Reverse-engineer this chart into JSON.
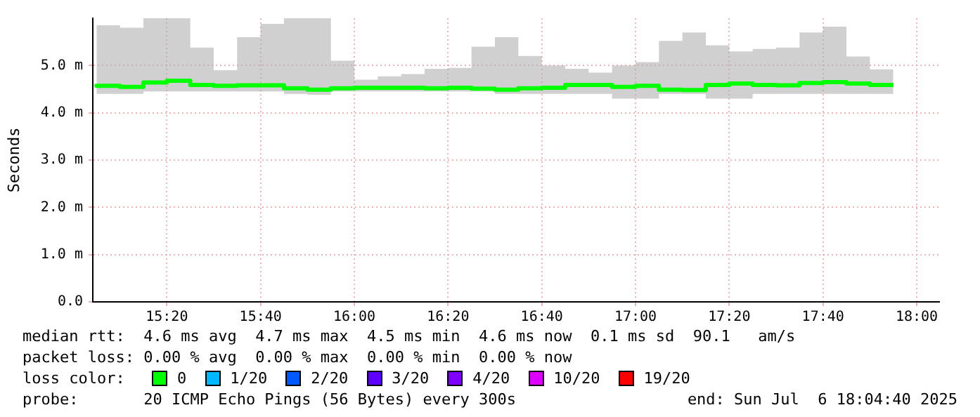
{
  "chart_data": {
    "type": "step",
    "ylabel": "Seconds",
    "legend_title": "loss color:",
    "legend": "bottom",
    "grid": true,
    "x": [
      15.0833,
      15.1667,
      15.25,
      15.3333,
      15.4167,
      15.5,
      15.5833,
      15.6667,
      15.75,
      15.8333,
      15.9167,
      16,
      16.0833,
      16.1667,
      16.25,
      16.3333,
      16.4167,
      16.5,
      16.5833,
      16.6667,
      16.75,
      16.8333,
      16.9167,
      17,
      17.0833,
      17.1667,
      17.25,
      17.3333,
      17.4167,
      17.5,
      17.5833,
      17.6667,
      17.75,
      17.8333,
      17.9167
    ],
    "xlim": [
      15.07,
      18.08
    ],
    "xticks": [
      {
        "value": 15.3333,
        "label": "15:20"
      },
      {
        "value": 15.6667,
        "label": "15:40"
      },
      {
        "value": 16,
        "label": "16:00"
      },
      {
        "value": 16.3333,
        "label": "16:20"
      },
      {
        "value": 16.6667,
        "label": "16:40"
      },
      {
        "value": 17,
        "label": "17:00"
      },
      {
        "value": 17.3333,
        "label": "17:20"
      },
      {
        "value": 17.6667,
        "label": "17:40"
      },
      {
        "value": 18,
        "label": "18:00"
      }
    ],
    "ylim": [
      0,
      6
    ],
    "yticks": [
      {
        "value": 0,
        "label": "0.0"
      },
      {
        "value": 1,
        "label": "1.0 m"
      },
      {
        "value": 2,
        "label": "2.0 m"
      },
      {
        "value": 3,
        "label": "3.0 m"
      },
      {
        "value": 4,
        "label": "4.0 m"
      },
      {
        "value": 5,
        "label": "5.0 m"
      }
    ],
    "series": [
      {
        "name": "0",
        "color": "#00ff00",
        "values": [
          4.61,
          4.57,
          4.55,
          4.64,
          4.68,
          4.59,
          4.57,
          4.58,
          4.58,
          4.52,
          4.49,
          4.52,
          4.53,
          4.53,
          4.53,
          4.52,
          4.53,
          4.51,
          4.49,
          4.52,
          4.53,
          4.59,
          4.59,
          4.55,
          4.57,
          4.49,
          4.48,
          4.59,
          4.62,
          4.59,
          4.58,
          4.63,
          4.65,
          4.62,
          4.59
        ],
        "lower": [
          4.3,
          4.4,
          4.4,
          4.45,
          4.45,
          4.45,
          4.45,
          4.45,
          4.45,
          4.4,
          4.38,
          4.45,
          4.45,
          4.45,
          4.45,
          4.45,
          4.45,
          4.45,
          4.4,
          4.4,
          4.4,
          4.4,
          4.4,
          4.3,
          4.3,
          4.4,
          4.4,
          4.3,
          4.3,
          4.4,
          4.4,
          4.4,
          4.4,
          4.4,
          4.4
        ],
        "upper": [
          5.95,
          5.85,
          5.8,
          6,
          6,
          5.38,
          4.9,
          5.6,
          5.88,
          6,
          6,
          5.1,
          4.7,
          4.77,
          4.82,
          4.93,
          4.95,
          5.4,
          5.6,
          5.2,
          5,
          4.93,
          4.85,
          5,
          5.07,
          5.52,
          5.7,
          5.43,
          5.3,
          5.35,
          5.38,
          5.7,
          5.82,
          5.19,
          4.92
        ]
      },
      {
        "name": "1/20",
        "color": "#00b8ff",
        "values": [
          null,
          null,
          null,
          null,
          null,
          null,
          null,
          null,
          null,
          null,
          null,
          null,
          null,
          null,
          null,
          null,
          null,
          null,
          null,
          null,
          null,
          null,
          null,
          null,
          null,
          null,
          null,
          null,
          null,
          null,
          null,
          null,
          null,
          null,
          null
        ]
      },
      {
        "name": "2/20",
        "color": "#0059ff",
        "values": [
          null,
          null,
          null,
          null,
          null,
          null,
          null,
          null,
          null,
          null,
          null,
          null,
          null,
          null,
          null,
          null,
          null,
          null,
          null,
          null,
          null,
          null,
          null,
          null,
          null,
          null,
          null,
          null,
          null,
          null,
          null,
          null,
          null,
          null,
          null
        ]
      },
      {
        "name": "3/20",
        "color": "#5e00ff",
        "values": [
          null,
          null,
          null,
          null,
          null,
          null,
          null,
          null,
          null,
          null,
          null,
          null,
          null,
          null,
          null,
          null,
          null,
          null,
          null,
          null,
          null,
          null,
          null,
          null,
          null,
          null,
          null,
          null,
          null,
          null,
          null,
          null,
          null,
          null,
          null
        ]
      },
      {
        "name": "4/20",
        "color": "#7e00ff",
        "values": [
          null,
          null,
          null,
          null,
          null,
          null,
          null,
          null,
          null,
          null,
          null,
          null,
          null,
          null,
          null,
          null,
          null,
          null,
          null,
          null,
          null,
          null,
          null,
          null,
          null,
          null,
          null,
          null,
          null,
          null,
          null,
          null,
          null,
          null,
          null
        ]
      },
      {
        "name": "10/20",
        "color": "#dd00ff",
        "values": [
          null,
          null,
          null,
          null,
          null,
          null,
          null,
          null,
          null,
          null,
          null,
          null,
          null,
          null,
          null,
          null,
          null,
          null,
          null,
          null,
          null,
          null,
          null,
          null,
          null,
          null,
          null,
          null,
          null,
          null,
          null,
          null,
          null,
          null,
          null
        ]
      },
      {
        "name": "19/20",
        "color": "#ff0000",
        "values": [
          null,
          null,
          null,
          null,
          null,
          null,
          null,
          null,
          null,
          null,
          null,
          null,
          null,
          null,
          null,
          null,
          null,
          null,
          null,
          null,
          null,
          null,
          null,
          null,
          null,
          null,
          null,
          null,
          null,
          null,
          null,
          null,
          null,
          null,
          null
        ]
      }
    ],
    "annotations": [
      "median rtt:  4.6 ms avg  4.7 ms max  4.5 ms min  4.6 ms now  0.1 ms sd  90.1   am/s",
      "packet loss: 0.00 % avg  0.00 % max  0.00 % min  0.00 % now",
      "probe:       20 ICMP Echo Pings (56 Bytes) every 300s",
      "end: Sun Jul  6 18:04:40 2025"
    ]
  }
}
